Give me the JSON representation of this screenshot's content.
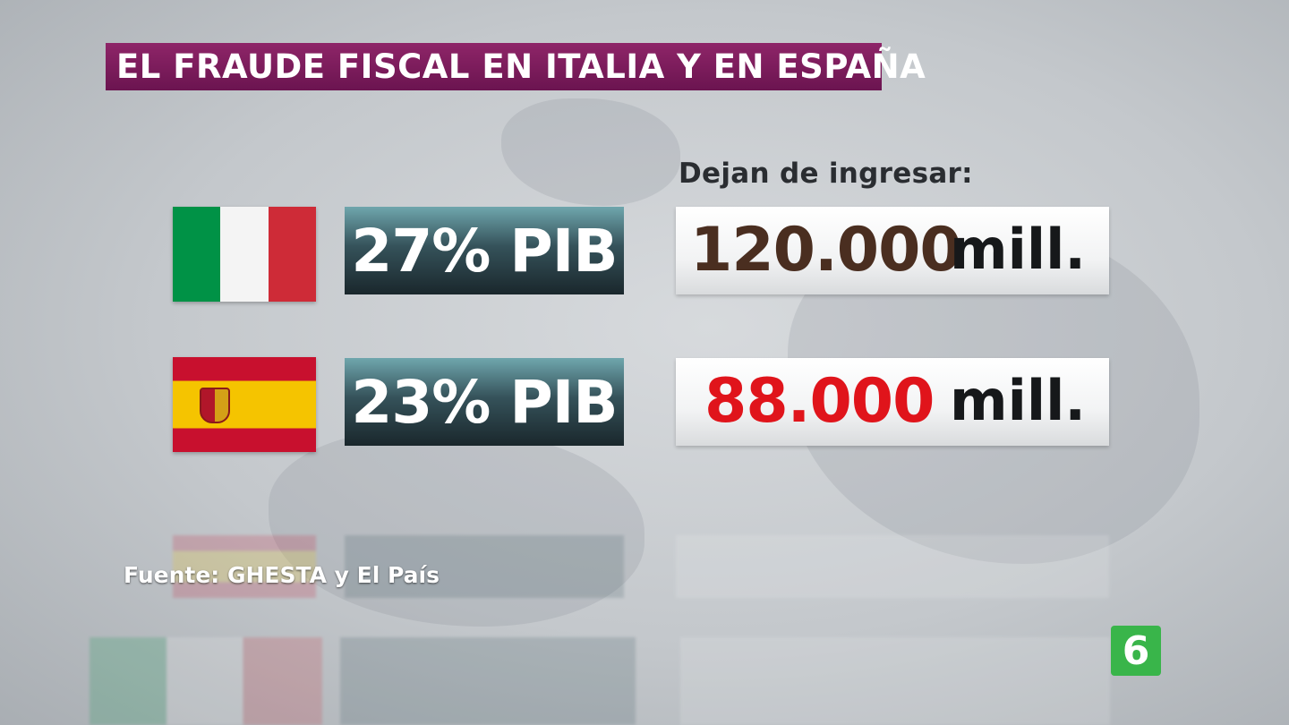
{
  "title": "EL FRAUDE FISCAL EN ITALIA Y EN ESPAÑA",
  "column_header": "Dejan de ingresar:",
  "rows": [
    {
      "flag": "italy-flag",
      "flag_colors": [
        "#009246",
        "#ffffff",
        "#ce2b37"
      ],
      "percent": "27% PIB",
      "amount": "120.000",
      "unit": "mill.",
      "amount_color": "#4a2e20"
    },
    {
      "flag": "spain-flag",
      "flag_colors": [
        "#c8102e",
        "#f5c400"
      ],
      "percent": "23% PIB",
      "amount": "88.000",
      "unit": "mill.",
      "amount_color": "#e0141b"
    }
  ],
  "source": "Fuente: GHESTA y El País",
  "channel_logo": "6",
  "colors": {
    "title_bg": "#7d1c5c",
    "logo_bg": "#39b54a"
  }
}
